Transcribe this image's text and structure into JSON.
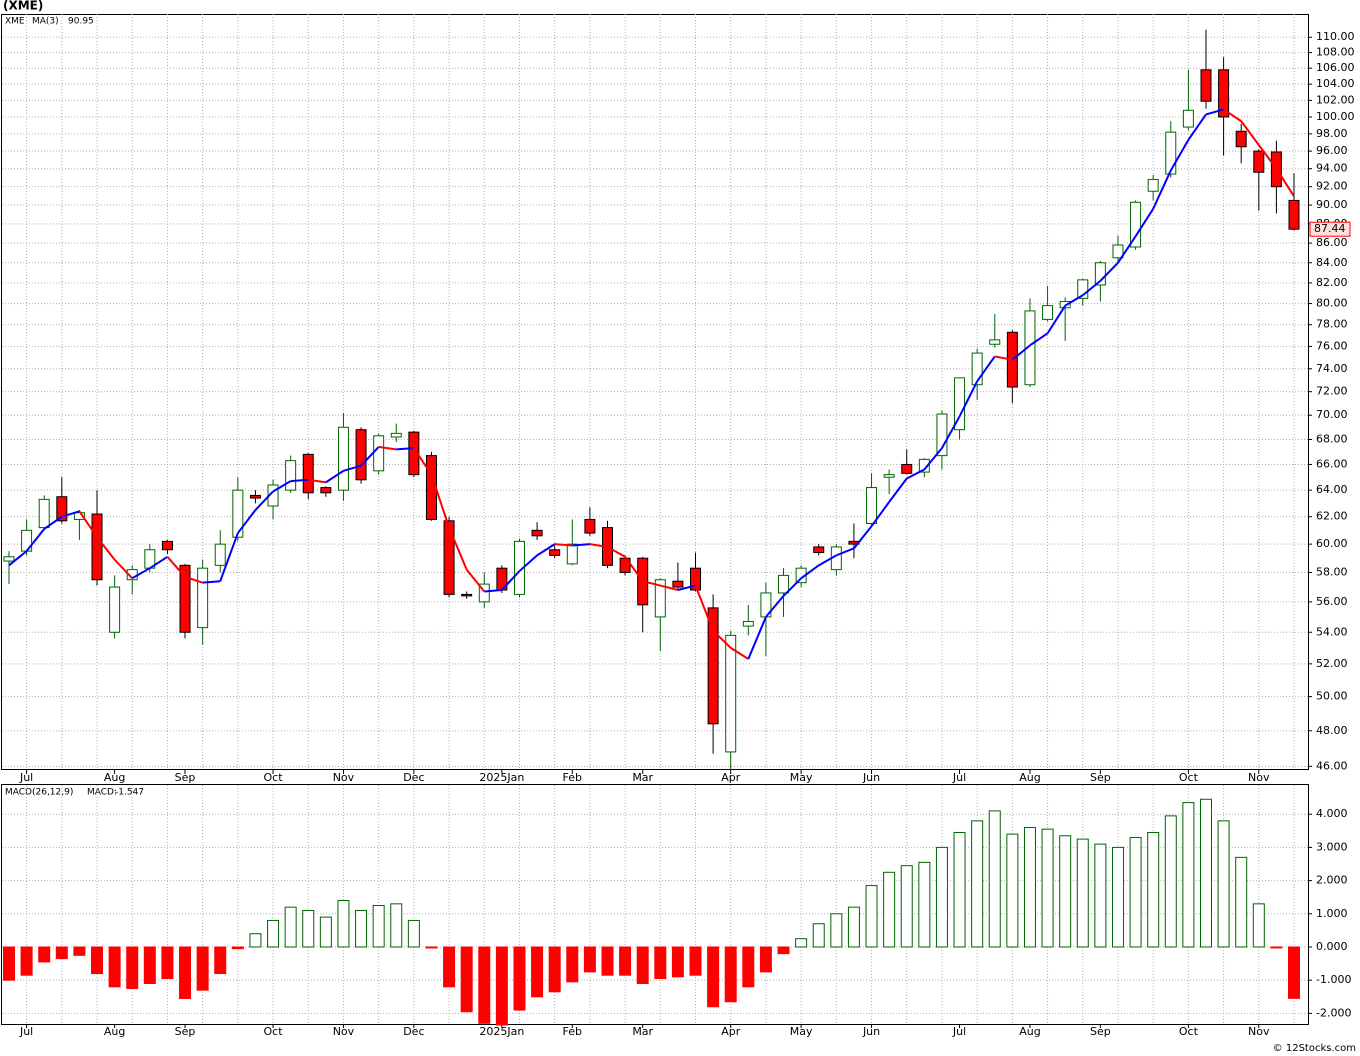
{
  "chart_data": [
    {
      "type": "candlestick",
      "title": "(XME)",
      "symbol": "XME",
      "log": true,
      "grid": true,
      "categories": [
        null,
        "Jul",
        null,
        null,
        null,
        null,
        "Aug",
        null,
        null,
        null,
        "Sep",
        null,
        null,
        null,
        null,
        "Oct",
        null,
        null,
        null,
        "Nov",
        null,
        null,
        null,
        "Dec",
        null,
        null,
        null,
        null,
        "2025Jan",
        null,
        null,
        null,
        "Feb",
        null,
        null,
        null,
        "Mar",
        null,
        null,
        null,
        null,
        "Apr",
        null,
        null,
        null,
        "May",
        null,
        null,
        null,
        "Jun",
        null,
        null,
        null,
        null,
        "Jul",
        null,
        null,
        null,
        "Aug",
        null,
        null,
        null,
        "Sep",
        null,
        null,
        null,
        null,
        "Oct",
        null,
        null,
        null,
        "Nov",
        null,
        null
      ],
      "open": [
        58.8,
        59.5,
        61.2,
        63.5,
        61.8,
        62.2,
        54.0,
        57.5,
        58.3,
        60.2,
        58.5,
        54.3,
        58.5,
        60.5,
        63.6,
        62.8,
        64.0,
        66.8,
        64.2,
        64.0,
        68.8,
        65.5,
        68.2,
        68.6,
        66.7,
        61.7,
        56.5,
        56.0,
        58.3,
        56.5,
        61.0,
        59.6,
        58.6,
        61.8,
        61.2,
        59.0,
        59.0,
        55.0,
        57.4,
        58.3,
        55.6,
        46.8,
        54.4,
        55.0,
        56.6,
        57.3,
        59.8,
        58.2,
        60.2,
        61.5,
        65.0,
        66.0,
        65.4,
        66.7,
        68.8,
        72.6,
        76.2,
        77.3,
        72.6,
        78.5,
        79.6,
        80.5,
        81.8,
        84.5,
        85.6,
        91.5,
        93.4,
        98.8,
        105.8,
        105.8,
        98.3,
        96.0,
        95.9,
        90.5
      ],
      "high": [
        59.5,
        61.8,
        63.6,
        65.0,
        62.5,
        64.0,
        57.8,
        58.5,
        60.0,
        60.3,
        58.6,
        58.9,
        61.0,
        65.0,
        64.0,
        64.8,
        66.7,
        66.9,
        64.3,
        70.2,
        69.0,
        68.5,
        69.3,
        68.7,
        67.0,
        62.0,
        56.7,
        58.0,
        58.5,
        60.4,
        61.6,
        59.9,
        61.8,
        62.7,
        61.7,
        59.2,
        59.1,
        57.6,
        58.7,
        59.4,
        56.5,
        54.1,
        55.8,
        57.3,
        58.3,
        58.5,
        60.0,
        60.0,
        61.5,
        65.3,
        65.6,
        67.2,
        66.5,
        70.4,
        73.2,
        75.8,
        79.0,
        77.5,
        80.5,
        81.7,
        80.6,
        82.4,
        84.2,
        86.8,
        90.5,
        93.3,
        99.5,
        105.8,
        111.0,
        107.4,
        99.2,
        96.2,
        97.2,
        93.5
      ],
      "low": [
        57.2,
        59.2,
        61.0,
        61.5,
        60.3,
        57.1,
        53.6,
        56.5,
        58.0,
        59.3,
        53.6,
        53.2,
        58.0,
        60.2,
        63.0,
        61.8,
        63.8,
        63.3,
        63.5,
        63.2,
        64.5,
        65.2,
        67.8,
        65.0,
        61.7,
        56.3,
        56.2,
        55.6,
        56.6,
        56.3,
        60.3,
        59.0,
        58.5,
        60.6,
        58.3,
        57.8,
        54.0,
        52.8,
        56.8,
        56.7,
        46.7,
        45.8,
        53.8,
        52.5,
        55.0,
        57.0,
        59.2,
        57.8,
        59.0,
        61.3,
        63.7,
        65.2,
        65.0,
        65.6,
        68.0,
        71.3,
        75.9,
        71.0,
        72.4,
        78.3,
        76.5,
        79.8,
        80.2,
        84.0,
        85.3,
        90.5,
        93.0,
        98.4,
        101.0,
        95.5,
        94.6,
        89.4,
        89.1,
        87.3
      ],
      "close": [
        59.1,
        61.0,
        63.3,
        61.7,
        62.3,
        57.5,
        57.0,
        58.2,
        59.6,
        59.6,
        54.0,
        58.3,
        60.0,
        64.0,
        63.4,
        64.4,
        66.3,
        63.8,
        63.8,
        69.0,
        64.8,
        68.3,
        68.5,
        65.2,
        61.8,
        56.5,
        56.4,
        57.2,
        56.8,
        60.2,
        60.6,
        59.2,
        60.0,
        60.8,
        58.5,
        58.0,
        55.8,
        57.5,
        57.0,
        56.8,
        48.4,
        53.8,
        54.7,
        56.6,
        57.8,
        58.3,
        59.4,
        59.8,
        60.0,
        64.2,
        65.2,
        65.3,
        66.4,
        70.1,
        73.2,
        75.4,
        76.6,
        72.4,
        79.3,
        79.8,
        80.2,
        82.3,
        84.0,
        85.8,
        90.3,
        92.8,
        98.2,
        100.8,
        101.9,
        100.0,
        96.5,
        93.6,
        92.0,
        87.44
      ],
      "up_color": "#006400",
      "down_color": "#ff0000",
      "symbol_color": "#008000",
      "series": [
        {
          "name": "MA(3)",
          "color": "#0000ff",
          "down_color": "#ff0000",
          "values": [
            58.5,
            59.5,
            61.1,
            62.0,
            62.4,
            60.5,
            58.9,
            57.6,
            58.3,
            59.1,
            57.7,
            57.3,
            57.4,
            60.8,
            62.5,
            63.9,
            64.7,
            64.8,
            64.6,
            65.5,
            65.9,
            67.4,
            67.2,
            67.3,
            65.2,
            61.2,
            58.2,
            56.7,
            56.8,
            58.1,
            59.2,
            60.0,
            59.9,
            60.0,
            59.8,
            59.1,
            57.4,
            57.1,
            56.8,
            57.1,
            54.1,
            53.0,
            52.3,
            55.0,
            56.4,
            57.6,
            58.5,
            59.2,
            59.7,
            61.3,
            63.1,
            64.9,
            65.6,
            67.3,
            69.9,
            72.9,
            75.1,
            74.8,
            76.1,
            77.2,
            79.8,
            80.8,
            82.2,
            84.0,
            86.7,
            89.6,
            93.8,
            97.3,
            100.3,
            100.9,
            99.5,
            96.7,
            94.0,
            90.95
          ]
        }
      ],
      "ylim": [
        45.8,
        113.1
      ],
      "yticks": [
        {
          "value": 46,
          "label": "46.00"
        },
        {
          "value": 48,
          "label": "48.00"
        },
        {
          "value": 50,
          "label": "50.00"
        },
        {
          "value": 52,
          "label": "52.00"
        },
        {
          "value": 54,
          "label": "54.00"
        },
        {
          "value": 56,
          "label": "56.00"
        },
        {
          "value": 58,
          "label": "58.00"
        },
        {
          "value": 60,
          "label": "60.00"
        },
        {
          "value": 62,
          "label": "62.00"
        },
        {
          "value": 64,
          "label": "64.00"
        },
        {
          "value": 66,
          "label": "66.00"
        },
        {
          "value": 68,
          "label": "68.00"
        },
        {
          "value": 70,
          "label": "70.00"
        },
        {
          "value": 72,
          "label": "72.00"
        },
        {
          "value": 74,
          "label": "74.00"
        },
        {
          "value": 76,
          "label": "76.00"
        },
        {
          "value": 78,
          "label": "78.00"
        },
        {
          "value": 80,
          "label": "80.00"
        },
        {
          "value": 82,
          "label": "82.00"
        },
        {
          "value": 84,
          "label": "84.00"
        },
        {
          "value": 86,
          "label": "86.00"
        },
        {
          "value": 88,
          "label": "88.00"
        },
        {
          "value": 90,
          "label": "90.00"
        },
        {
          "value": 92,
          "label": "92.00"
        },
        {
          "value": 94,
          "label": "94.00"
        },
        {
          "value": 96,
          "label": "96.00"
        },
        {
          "value": 98,
          "label": "98.00"
        },
        {
          "value": 100,
          "label": "100.00"
        },
        {
          "value": 102,
          "label": "102.00"
        },
        {
          "value": 104,
          "label": "104.00"
        },
        {
          "value": 106,
          "label": "106.00"
        },
        {
          "value": 108,
          "label": "108.00"
        },
        {
          "value": 110,
          "label": "110.00"
        }
      ]
    },
    {
      "type": "bar",
      "title": "MACD(26,12,9)",
      "value_caption": "MACD:",
      "grid": true,
      "credit": "© 12Stocks.com",
      "categories": [
        null,
        "Jul",
        null,
        null,
        null,
        null,
        "Aug",
        null,
        null,
        null,
        "Sep",
        null,
        null,
        null,
        null,
        "Oct",
        null,
        null,
        null,
        "Nov",
        null,
        null,
        null,
        "Dec",
        null,
        null,
        null,
        null,
        "2025Jan",
        null,
        null,
        null,
        "Feb",
        null,
        null,
        null,
        "Mar",
        null,
        null,
        null,
        null,
        "Apr",
        null,
        null,
        null,
        "May",
        null,
        null,
        null,
        "Jun",
        null,
        null,
        null,
        null,
        "Jul",
        null,
        null,
        null,
        "Aug",
        null,
        null,
        null,
        "Sep",
        null,
        null,
        null,
        null,
        "Oct",
        null,
        null,
        null,
        "Nov",
        null,
        null
      ],
      "values": [
        -1.0,
        -0.85,
        -0.45,
        -0.35,
        -0.25,
        -0.8,
        -1.2,
        -1.25,
        -1.1,
        -0.95,
        -1.55,
        -1.3,
        -0.8,
        -0.05,
        0.4,
        0.8,
        1.2,
        1.1,
        0.9,
        1.4,
        1.1,
        1.25,
        1.3,
        0.8,
        -0.02,
        -1.2,
        -1.95,
        -2.3,
        -2.35,
        -1.9,
        -1.5,
        -1.35,
        -1.05,
        -0.75,
        -0.85,
        -0.85,
        -1.1,
        -0.95,
        -0.9,
        -0.85,
        -1.8,
        -1.65,
        -1.2,
        -0.75,
        -0.2,
        0.25,
        0.7,
        1.0,
        1.2,
        1.85,
        2.25,
        2.45,
        2.55,
        3.0,
        3.45,
        3.8,
        4.1,
        3.4,
        3.6,
        3.55,
        3.35,
        3.25,
        3.1,
        3.0,
        3.3,
        3.45,
        3.95,
        4.35,
        4.45,
        3.8,
        2.7,
        1.3,
        -0.02,
        -1.547
      ],
      "up_color": "#006400",
      "down_color": "#ff0000",
      "caption_color": "#0000cc",
      "ylim": [
        -2.32,
        4.88
      ],
      "yticks": [
        {
          "value": -2,
          "label": "-2.000"
        },
        {
          "value": -1,
          "label": "-1.000"
        },
        {
          "value": 0,
          "label": "0.000"
        },
        {
          "value": 1,
          "label": "1.000"
        },
        {
          "value": 2,
          "label": "2.000"
        },
        {
          "value": 3,
          "label": "3.000"
        },
        {
          "value": 4,
          "label": "4.000"
        }
      ]
    }
  ]
}
